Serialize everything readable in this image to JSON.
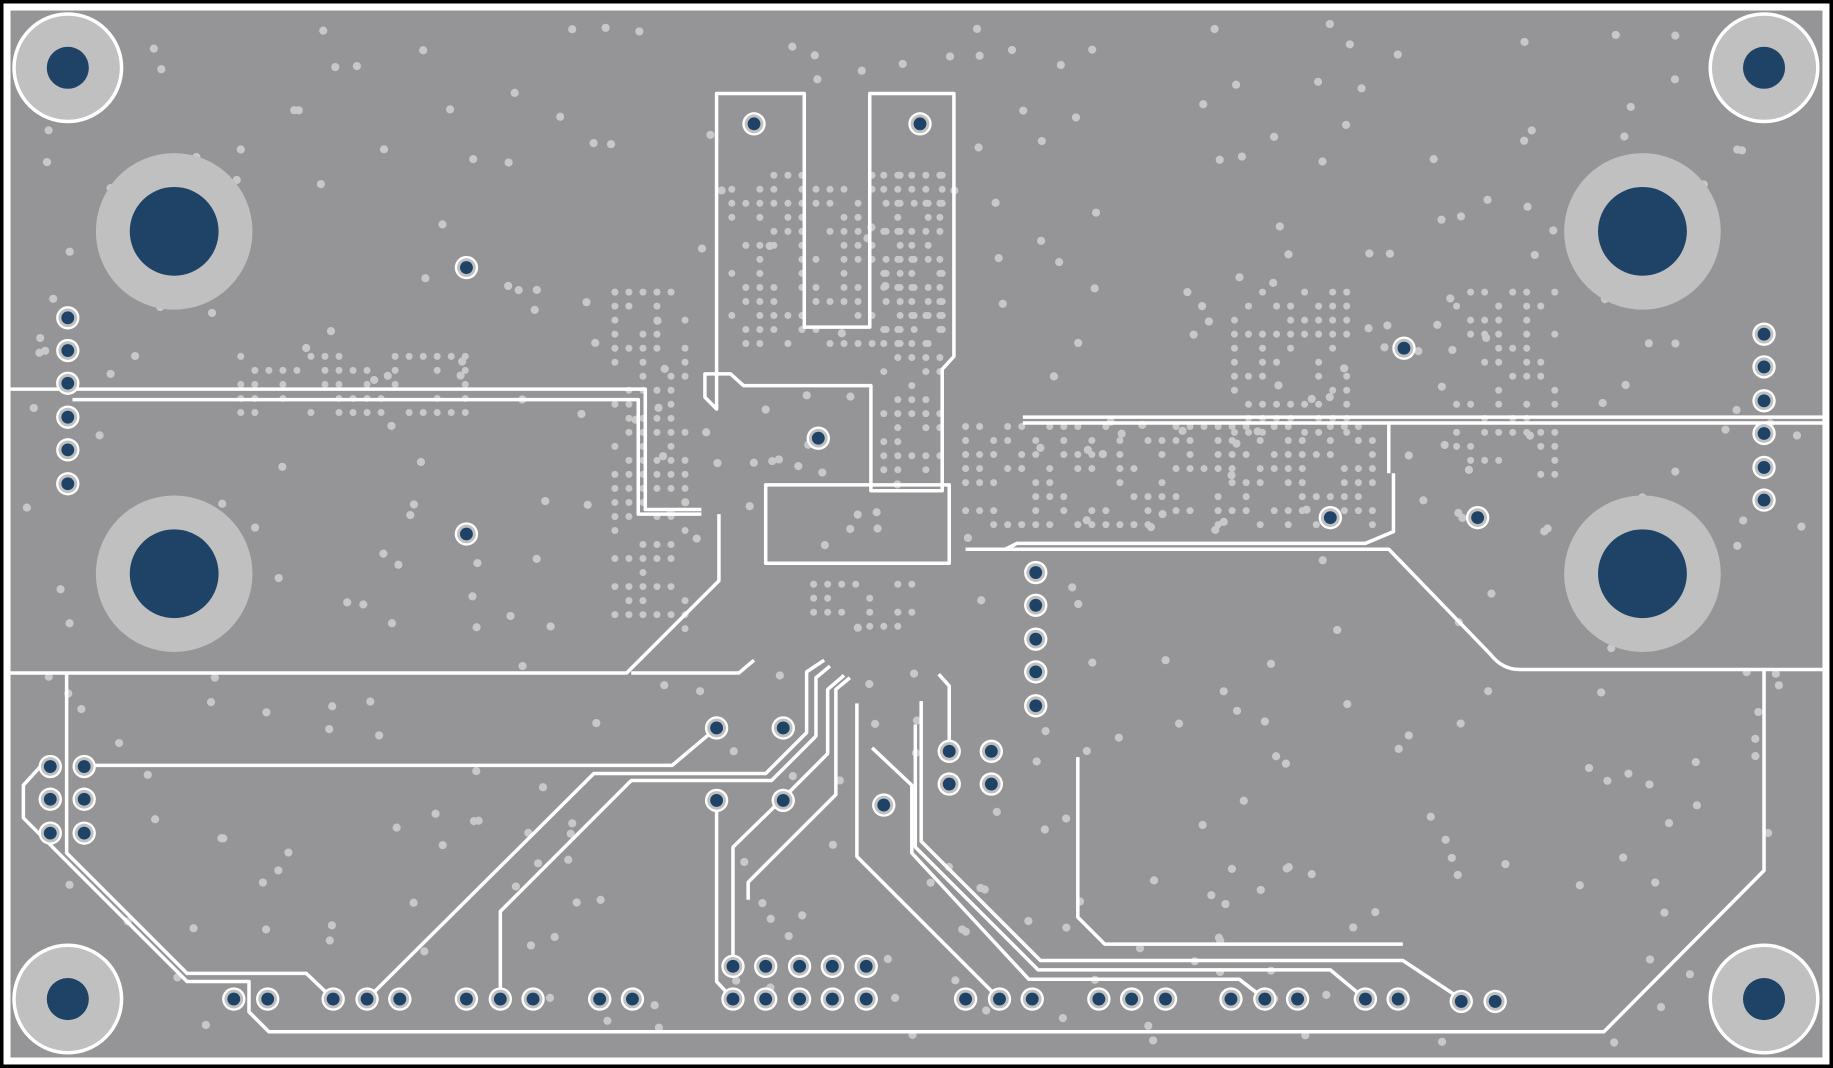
{
  "colors": {
    "frame": "#000000",
    "board": "#959597",
    "copper_trace": "#ffffff",
    "pad_ring": "#c0c0c0",
    "drill": "#1e4366",
    "via": "#c8c8c8"
  }
}
